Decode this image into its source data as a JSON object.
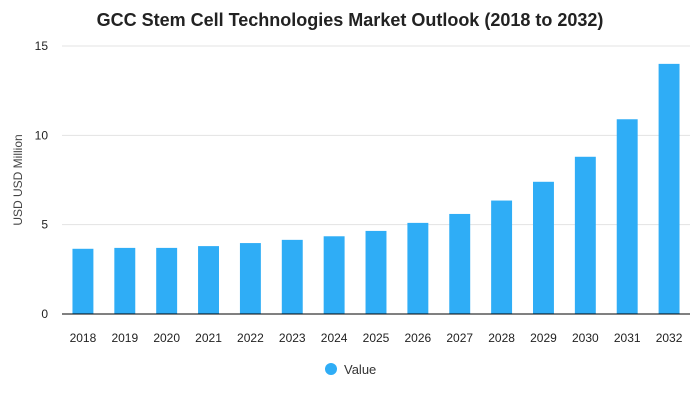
{
  "chart_data": {
    "type": "bar",
    "title": "GCC Stem Cell Technologies Market Outlook (2018 to 2032)",
    "xlabel": "",
    "ylabel": "USD USD Million",
    "ylim": [
      0,
      15
    ],
    "yticks": [
      0,
      5,
      10,
      15
    ],
    "grid": true,
    "legend_position": "bottom",
    "categories": [
      "2018",
      "2019",
      "2020",
      "2021",
      "2022",
      "2023",
      "2024",
      "2025",
      "2026",
      "2027",
      "2028",
      "2029",
      "2030",
      "2031",
      "2032"
    ],
    "series": [
      {
        "name": "Value",
        "color": "#2fadf6",
        "values": [
          3.65,
          3.7,
          3.7,
          3.8,
          3.97,
          4.15,
          4.35,
          4.65,
          5.1,
          5.6,
          6.35,
          7.4,
          8.8,
          10.9,
          14.0
        ]
      }
    ],
    "colors": {
      "gridline": "#e3e3e3",
      "axis": "#000000",
      "text": "#222222"
    }
  }
}
